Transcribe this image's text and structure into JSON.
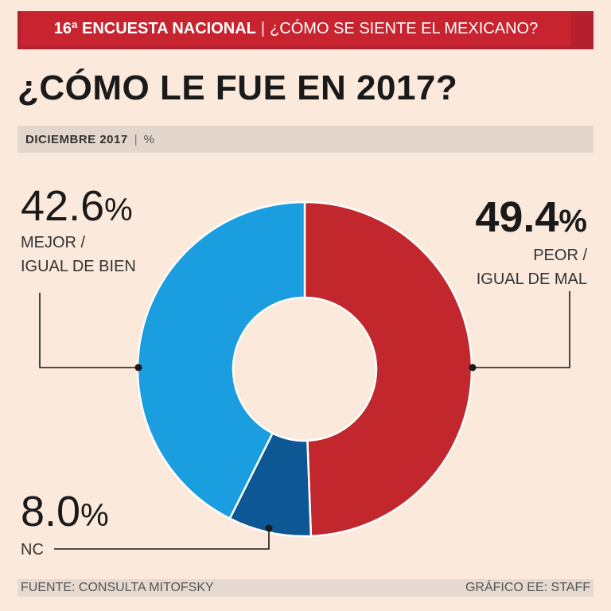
{
  "header": {
    "survey": "16ª ENCUESTA NACIONAL",
    "separator": "|",
    "question": "¿CÓMO SE SIENTE EL MEXICANO?"
  },
  "title": "¿CÓMO LE FUE EN 2017?",
  "subheader": {
    "date": "DICIEMBRE 2017",
    "separator": "|",
    "unit": "%"
  },
  "chart_data": {
    "type": "pie",
    "style": "donut",
    "title": "¿CÓMO LE FUE EN 2017?",
    "unit": "%",
    "slices": [
      {
        "label": "PEOR / IGUAL DE MAL",
        "value": 49.4,
        "display": "49.4",
        "color": "#c1272d"
      },
      {
        "label": "NC",
        "value": 8.0,
        "display": "8.0",
        "color": "#0d5794"
      },
      {
        "label": "MEJOR / IGUAL DE BIEN",
        "value": 42.6,
        "display": "42.6",
        "color": "#1a9ee0"
      }
    ]
  },
  "labels": {
    "peor": {
      "value": "49.4",
      "pct": "%",
      "line1": "PEOR /",
      "line2": "IGUAL DE MAL"
    },
    "mejor": {
      "value": "42.6",
      "pct": "%",
      "line1": "MEJOR /",
      "line2": "IGUAL DE BIEN"
    },
    "nc": {
      "value": "8.0",
      "pct": "%",
      "line1": "NC"
    }
  },
  "footer": {
    "source": "FUENTE: CONSULTA MITOFSKY",
    "credit": "GRÁFICO EE: STAFF"
  }
}
